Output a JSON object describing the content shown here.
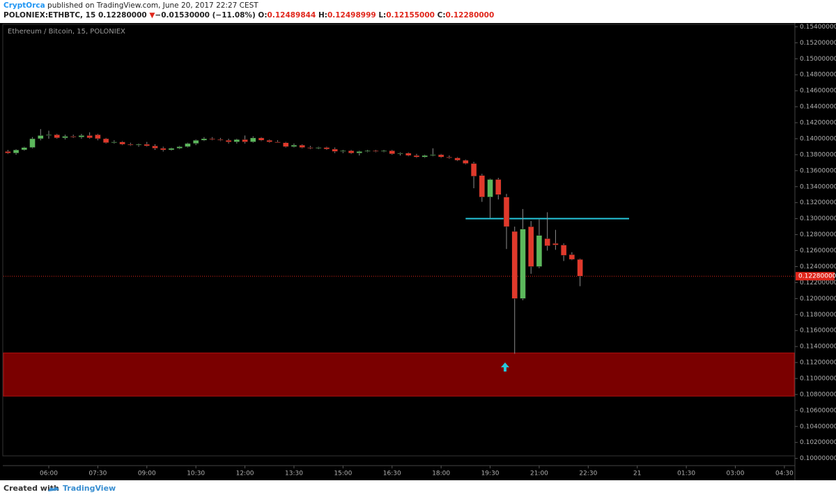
{
  "header": {
    "author": "CryptOrca",
    "published": "published on TradingView.com, June 20, 2017 22:27 CEST",
    "symbol": "POLONIEX:ETHBTC, 15",
    "last": "0.12280000",
    "arrow": "▼",
    "change": "−0.01530000 (−11.08%)",
    "o_label": "O:",
    "o": "0.12489844",
    "h_label": "H:",
    "h": "0.12498999",
    "l_label": "L:",
    "l": "0.12155000",
    "c_label": "C:",
    "c": "0.12280000"
  },
  "footer": {
    "created": "Created with",
    "brand": "TradingView"
  },
  "chart_data": {
    "type": "candlestick",
    "title": "Ethereum / Bitcoin, 15, POLONIEX",
    "x": [
      4.75,
      5,
      5.25,
      5.5,
      5.75,
      6,
      6.25,
      6.5,
      6.75,
      7,
      7.25,
      7.5,
      7.75,
      8,
      8.25,
      8.5,
      8.75,
      9,
      9.25,
      9.5,
      9.75,
      10,
      10.25,
      10.5,
      10.75,
      11,
      11.25,
      11.5,
      11.75,
      12,
      12.25,
      12.5,
      12.75,
      13,
      13.25,
      13.5,
      13.75,
      14,
      14.25,
      14.5,
      14.75,
      15,
      15.25,
      15.5,
      15.75,
      16,
      16.25,
      16.5,
      16.75,
      17,
      17.25,
      17.5,
      17.75,
      18,
      18.25,
      18.5,
      18.75,
      19,
      19.25,
      19.5,
      19.75,
      20,
      20.25,
      20.5,
      20.75,
      21,
      21.25,
      21.5,
      21.75,
      22,
      22.25
    ],
    "open": [
      0.1384,
      0.1382,
      0.1386,
      0.1389,
      0.14,
      0.1404,
      0.1405,
      0.1401,
      0.1403,
      0.1402,
      0.1404,
      0.1405,
      0.14,
      0.1395,
      0.1396,
      0.1393,
      0.1392,
      0.1393,
      0.1391,
      0.1388,
      0.1386,
      0.1388,
      0.139,
      0.1394,
      0.1398,
      0.14,
      0.1399,
      0.1398,
      0.1396,
      0.1399,
      0.1396,
      0.1401,
      0.1398,
      0.1396,
      0.1395,
      0.139,
      0.1392,
      0.1389,
      0.1388,
      0.1389,
      0.1387,
      0.1384,
      0.1385,
      0.1382,
      0.1384,
      0.1385,
      0.1384,
      0.1385,
      0.1381,
      0.1382,
      0.1379,
      0.1377,
      0.1379,
      0.138,
      0.1377,
      0.1376,
      0.1373,
      0.1369,
      0.1354,
      0.1327,
      0.1349,
      0.1327,
      0.1284,
      0.12,
      0.129,
      0.124,
      0.1275,
      0.1269,
      0.1267,
      0.1255,
      0.12489844
    ],
    "high": [
      0.1386,
      0.1387,
      0.139,
      0.1402,
      0.1412,
      0.141,
      0.1406,
      0.1405,
      0.1405,
      0.1406,
      0.1408,
      0.1406,
      0.1401,
      0.1398,
      0.1397,
      0.1395,
      0.1394,
      0.1396,
      0.1393,
      0.139,
      0.1389,
      0.1391,
      0.1395,
      0.1399,
      0.1402,
      0.1402,
      0.1401,
      0.14,
      0.14,
      0.1404,
      0.1403,
      0.1402,
      0.1399,
      0.1398,
      0.1396,
      0.1394,
      0.1393,
      0.1391,
      0.139,
      0.139,
      0.1389,
      0.1386,
      0.1386,
      0.1385,
      0.1386,
      0.1386,
      0.1386,
      0.1386,
      0.1383,
      0.1383,
      0.1381,
      0.138,
      0.1388,
      0.1381,
      0.1379,
      0.1377,
      0.1374,
      0.1371,
      0.1356,
      0.135,
      0.1351,
      0.1331,
      0.129,
      0.1312,
      0.1297,
      0.1299,
      0.1308,
      0.1286,
      0.1269,
      0.1258,
      0.12498999
    ],
    "low": [
      0.1381,
      0.138,
      0.1385,
      0.1388,
      0.1398,
      0.14,
      0.14,
      0.1399,
      0.1401,
      0.14,
      0.14,
      0.1398,
      0.1394,
      0.1394,
      0.1392,
      0.1391,
      0.139,
      0.139,
      0.1386,
      0.1384,
      0.1385,
      0.1387,
      0.1389,
      0.1392,
      0.1397,
      0.1398,
      0.1397,
      0.1394,
      0.1394,
      0.1394,
      0.1395,
      0.1397,
      0.1395,
      0.1395,
      0.1389,
      0.1389,
      0.1388,
      0.1387,
      0.1387,
      0.1386,
      0.1382,
      0.1382,
      0.1381,
      0.1379,
      0.1383,
      0.1383,
      0.1383,
      0.138,
      0.1379,
      0.1378,
      0.1376,
      0.1376,
      0.1378,
      0.1376,
      0.1375,
      0.1372,
      0.1368,
      0.1338,
      0.1321,
      0.1301,
      0.1324,
      0.1262,
      0.1131,
      0.1198,
      0.1231,
      0.1238,
      0.126,
      0.1261,
      0.1247,
      0.1248,
      0.12155
    ],
    "close": [
      0.1382,
      0.1386,
      0.1389,
      0.14,
      0.1404,
      0.1405,
      0.1401,
      0.1403,
      0.1402,
      0.1404,
      0.1401,
      0.14,
      0.1395,
      0.1396,
      0.1393,
      0.1392,
      0.1393,
      0.1391,
      0.1388,
      0.1386,
      0.1388,
      0.139,
      0.1394,
      0.1398,
      0.14,
      0.1399,
      0.1398,
      0.1396,
      0.1399,
      0.1396,
      0.1401,
      0.1398,
      0.1396,
      0.1395,
      0.139,
      0.1392,
      0.1389,
      0.1388,
      0.1389,
      0.1387,
      0.1384,
      0.1385,
      0.1382,
      0.1384,
      0.1385,
      0.1384,
      0.1385,
      0.1381,
      0.1382,
      0.1379,
      0.1377,
      0.1379,
      0.138,
      0.1377,
      0.1376,
      0.1373,
      0.1369,
      0.1353,
      0.1327,
      0.1349,
      0.133,
      0.129,
      0.12,
      0.1287,
      0.124,
      0.1279,
      0.1266,
      0.1267,
      0.1254,
      0.1249,
      0.1228
    ],
    "up_color": "#5cb85c",
    "down_color": "#e0392b",
    "xlim": [
      4.615,
      28.8
    ],
    "xticks": [
      {
        "value": 6,
        "label": "06:00"
      },
      {
        "value": 7.5,
        "label": "07:30"
      },
      {
        "value": 9,
        "label": "09:00"
      },
      {
        "value": 10.5,
        "label": "10:30"
      },
      {
        "value": 12,
        "label": "12:00"
      },
      {
        "value": 13.5,
        "label": "13:30"
      },
      {
        "value": 15,
        "label": "15:00"
      },
      {
        "value": 16.5,
        "label": "16:30"
      },
      {
        "value": 18,
        "label": "18:00"
      },
      {
        "value": 19.5,
        "label": "19:30"
      },
      {
        "value": 21,
        "label": "21:00"
      },
      {
        "value": 22.5,
        "label": "22:30"
      },
      {
        "value": 24,
        "label": "21"
      },
      {
        "value": 25.5,
        "label": "01:30"
      },
      {
        "value": 27,
        "label": "03:00"
      },
      {
        "value": 28.5,
        "label": "04:30"
      }
    ],
    "ylim": [
      0.0991,
      0.1543
    ],
    "yticks": [
      {
        "value": 0.154,
        "label": "0.15400000"
      },
      {
        "value": 0.152,
        "label": "0.15200000"
      },
      {
        "value": 0.15,
        "label": "0.15000000"
      },
      {
        "value": 0.148,
        "label": "0.14800000"
      },
      {
        "value": 0.146,
        "label": "0.14600000"
      },
      {
        "value": 0.144,
        "label": "0.14400000"
      },
      {
        "value": 0.142,
        "label": "0.14200000"
      },
      {
        "value": 0.14,
        "label": "0.14000000"
      },
      {
        "value": 0.138,
        "label": "0.13800000"
      },
      {
        "value": 0.136,
        "label": "0.13600000"
      },
      {
        "value": 0.134,
        "label": "0.13400000"
      },
      {
        "value": 0.132,
        "label": "0.13200000"
      },
      {
        "value": 0.13,
        "label": "0.13000000"
      },
      {
        "value": 0.128,
        "label": "0.12800000"
      },
      {
        "value": 0.126,
        "label": "0.12600000"
      },
      {
        "value": 0.124,
        "label": "0.12400000"
      },
      {
        "value": 0.122,
        "label": "0.12200000"
      },
      {
        "value": 0.12,
        "label": "0.12000000"
      },
      {
        "value": 0.118,
        "label": "0.11800000"
      },
      {
        "value": 0.116,
        "label": "0.11600000"
      },
      {
        "value": 0.114,
        "label": "0.11400000"
      },
      {
        "value": 0.112,
        "label": "0.11200000"
      },
      {
        "value": 0.11,
        "label": "0.11000000"
      },
      {
        "value": 0.108,
        "label": "0.10800000"
      },
      {
        "value": 0.106,
        "label": "0.10600000"
      },
      {
        "value": 0.104,
        "label": "0.10400000"
      },
      {
        "value": 0.102,
        "label": "0.10200000"
      },
      {
        "value": 0.1,
        "label": "0.10000000"
      }
    ],
    "grid": false,
    "last_price": {
      "value": 0.1228,
      "label": "0.12280000",
      "color": "#e0261b"
    },
    "hline": {
      "value": 0.13,
      "x": [
        18.75,
        23.75
      ],
      "color": "#26c6da"
    },
    "zone": {
      "ylim": [
        0.1078,
        0.1132
      ],
      "color": "#7a0000",
      "border": "#b01010"
    }
  }
}
